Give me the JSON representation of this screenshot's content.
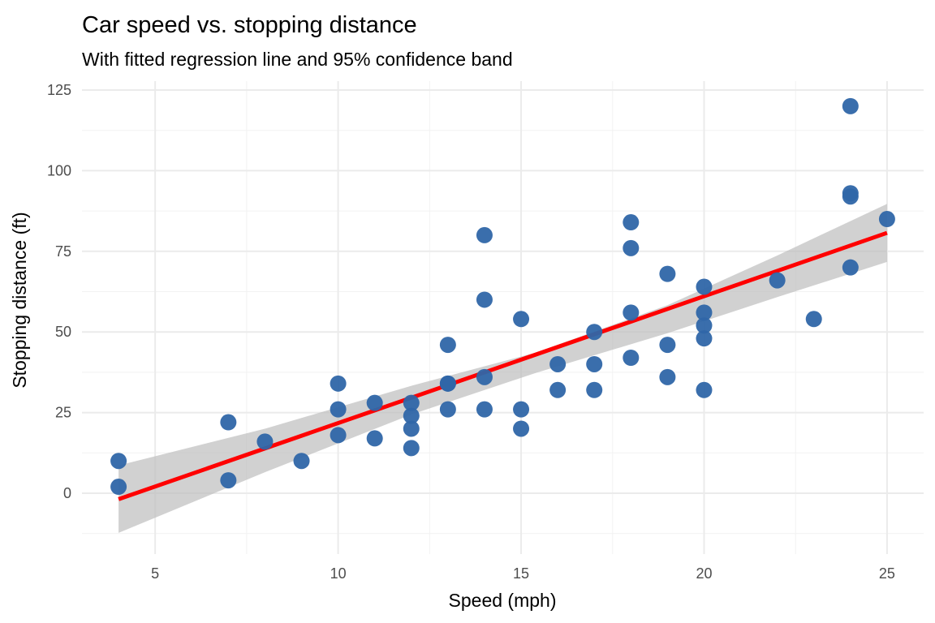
{
  "chart_data": {
    "type": "scatter",
    "title": "Car speed vs. stopping distance",
    "subtitle": "With fitted regression line and 95% confidence band",
    "xlabel": "Speed (mph)",
    "ylabel": "Stopping distance (ft)",
    "xlim": [
      3,
      26
    ],
    "ylim": [
      -18,
      125
    ],
    "x_ticks": [
      5,
      10,
      15,
      20,
      25
    ],
    "x_tick_labels": [
      "5",
      "10",
      "15",
      "20",
      "25"
    ],
    "x_minor_ticks": [
      7.5,
      12.5,
      17.5,
      22.5
    ],
    "y_ticks": [
      0,
      25,
      50,
      75,
      100,
      125
    ],
    "y_tick_labels": [
      "0",
      "25",
      "50",
      "75",
      "100",
      "125"
    ],
    "y_minor_ticks": [
      -12.5,
      12.5,
      37.5,
      62.5,
      87.5,
      112.5
    ],
    "grid": true,
    "legend": "none",
    "colors": {
      "points": "#2f66a8",
      "fit_line": "#ff0000",
      "confidence_band": "#bdbdbd"
    },
    "series": [
      {
        "name": "observations",
        "type": "scatter",
        "x": [
          4,
          4,
          7,
          7,
          8,
          9,
          10,
          10,
          10,
          11,
          11,
          12,
          12,
          12,
          12,
          13,
          13,
          13,
          13,
          14,
          14,
          14,
          14,
          15,
          15,
          15,
          16,
          16,
          17,
          17,
          17,
          18,
          18,
          18,
          18,
          19,
          19,
          19,
          20,
          20,
          20,
          20,
          20,
          22,
          23,
          24,
          24,
          24,
          24,
          25
        ],
        "y": [
          2,
          10,
          4,
          22,
          16,
          10,
          18,
          26,
          34,
          17,
          28,
          14,
          20,
          24,
          28,
          26,
          34,
          34,
          46,
          26,
          36,
          60,
          80,
          20,
          26,
          54,
          32,
          40,
          32,
          40,
          50,
          42,
          56,
          76,
          84,
          36,
          46,
          68,
          32,
          48,
          52,
          56,
          64,
          66,
          54,
          70,
          92,
          93,
          120,
          85
        ]
      },
      {
        "name": "linear fit",
        "type": "line",
        "intercept": -17.579,
        "slope": 3.932,
        "x_range": [
          4,
          25
        ]
      },
      {
        "name": "95% confidence band",
        "type": "area",
        "x": [
          4,
          8,
          12,
          15.4,
          19,
          22,
          25
        ],
        "lower": [
          -12.3,
          6.5,
          24.4,
          37.3,
          49.6,
          60.8,
          71.7
        ],
        "upper": [
          8.6,
          20.0,
          33.3,
          43.6,
          58.3,
          73.7,
          89.7
        ]
      }
    ]
  }
}
